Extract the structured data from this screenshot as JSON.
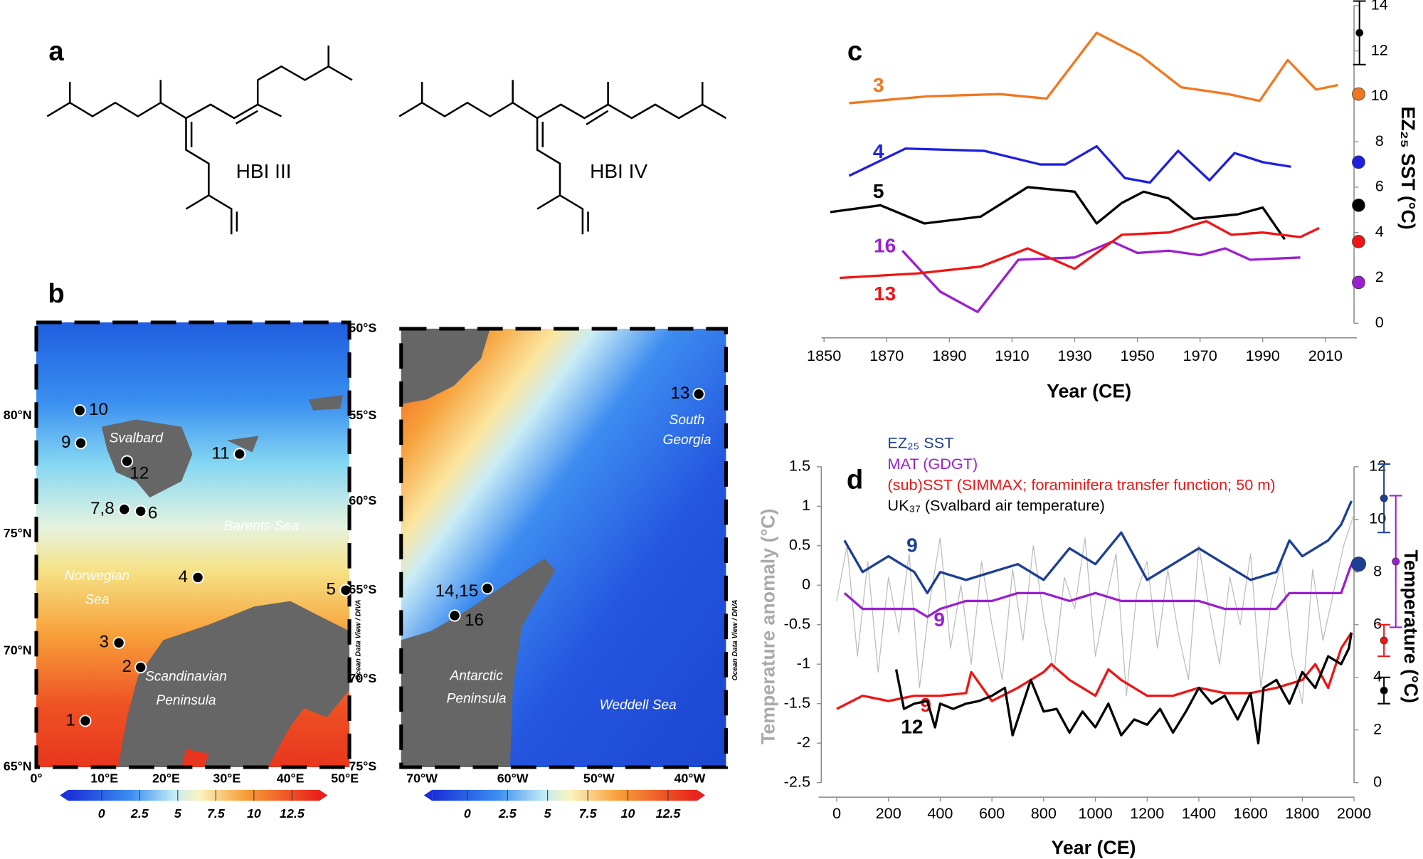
{
  "panel_labels": [
    "a",
    "b",
    "c",
    "d"
  ],
  "structures": [
    "HBI III",
    "HBI IV"
  ],
  "maps": [
    {
      "lat_ticks": [
        "80°N",
        "75°N",
        "70°N",
        "65°N"
      ],
      "lon_ticks": [
        "0°",
        "10°E",
        "20°E",
        "30°E",
        "40°E",
        "50°E"
      ],
      "places": [
        [
          "Svalbard"
        ],
        [
          "Barents Sea"
        ],
        [
          "Norwegian",
          "Sea"
        ],
        [
          "Scandinavian",
          "Peninsula"
        ]
      ],
      "stations": [
        "10",
        "9",
        "12",
        "11",
        "7,8",
        "6",
        "4",
        "5",
        "3",
        "2",
        "1"
      ],
      "credit": "Ocean Data View / DIVA",
      "colorbar": {
        "clim": [
          -2.2,
          14.3
        ],
        "ticks": [
          0,
          2.5,
          5,
          7.5,
          10,
          12.5
        ]
      }
    },
    {
      "lat_ticks": [
        "50°S",
        "55°S",
        "60°S",
        "65°S",
        "70°S",
        "75°S"
      ],
      "lon_ticks": [
        "70°W",
        "60°W",
        "50°W",
        "40°W"
      ],
      "places": [
        [
          "South",
          "Georgia"
        ],
        [
          "Antarctic",
          "Peninsula"
        ],
        [
          "Weddell Sea"
        ]
      ],
      "stations": [
        "13",
        "14,15",
        "16"
      ],
      "credit": "Ocean Data View / DIVA",
      "colorbar": {
        "clim": [
          -2.2,
          14.3
        ],
        "ticks": [
          0,
          2.5,
          5,
          7.5,
          10,
          12.5
        ]
      }
    }
  ],
  "chart_data": [
    {
      "type": "line",
      "xlabel": "Year (CE)",
      "ylabel": "EZ₂₅ SST (°C)",
      "yaxis_side": "right",
      "xlim": [
        1850,
        2020
      ],
      "xticks": [
        1850,
        1870,
        1890,
        1910,
        1930,
        1950,
        1970,
        1990,
        2010
      ],
      "ylim": [
        0,
        14
      ],
      "yticks": [
        0,
        2,
        4,
        6,
        8,
        10,
        12,
        14
      ],
      "series": [
        {
          "name": "3",
          "color": "#f07820",
          "x": [
            1858,
            1883,
            1906,
            1921,
            1937,
            1951,
            1964,
            1979,
            1989,
            1998,
            2007,
            2014
          ],
          "values": [
            9.7,
            10.0,
            10.1,
            9.9,
            12.8,
            11.8,
            10.4,
            10.1,
            9.8,
            11.6,
            10.3,
            10.5
          ]
        },
        {
          "name": "4",
          "color": "#1f1fe0",
          "x": [
            1858,
            1876,
            1901,
            1919,
            1927,
            1937,
            1946,
            1954,
            1963,
            1973,
            1981,
            1990,
            1999
          ],
          "values": [
            6.5,
            7.7,
            7.6,
            7.0,
            7.0,
            7.8,
            6.4,
            6.2,
            7.6,
            6.3,
            7.5,
            7.1,
            6.9
          ]
        },
        {
          "name": "5",
          "color": "#000000",
          "x": [
            1852,
            1868,
            1882,
            1900,
            1915,
            1930,
            1937,
            1945,
            1952,
            1960,
            1968,
            1982,
            1990,
            1997
          ],
          "values": [
            4.9,
            5.2,
            4.4,
            4.7,
            6.0,
            5.8,
            4.4,
            5.3,
            5.8,
            5.5,
            4.6,
            4.8,
            5.1,
            3.7
          ]
        },
        {
          "name": "16",
          "color": "#9b1fcf",
          "x": [
            1875,
            1887,
            1899,
            1912,
            1930,
            1942,
            1950,
            1960,
            1970,
            1978,
            1986,
            2002
          ],
          "values": [
            3.2,
            1.4,
            0.5,
            2.8,
            2.9,
            3.6,
            3.1,
            3.2,
            3.0,
            3.3,
            2.8,
            2.9
          ]
        },
        {
          "name": "13",
          "color": "#f01414",
          "x": [
            1855,
            1880,
            1900,
            1915,
            1930,
            1945,
            1960,
            1972,
            1980,
            1990,
            2002,
            2008
          ],
          "values": [
            2.0,
            2.2,
            2.5,
            3.3,
            2.4,
            3.9,
            4.0,
            4.5,
            3.9,
            4.0,
            3.8,
            4.2
          ]
        }
      ],
      "markers": [
        {
          "value": 12.8,
          "error": 1.4,
          "color": "#000000"
        },
        {
          "value": 10.1,
          "color": "#f07820"
        },
        {
          "value": 7.1,
          "color": "#1f1fe0"
        },
        {
          "value": 5.2,
          "color": "#000000"
        },
        {
          "value": 3.6,
          "color": "#f01414"
        },
        {
          "value": 1.8,
          "color": "#9b1fcf"
        }
      ]
    },
    {
      "type": "line",
      "xlabel": "Year (CE)",
      "ylabel": "Temperature anomaly (°C)",
      "y2label": "Temperature (°C)",
      "legend": "top-left",
      "xlim": [
        0,
        2000
      ],
      "xticks": [
        0,
        200,
        400,
        600,
        800,
        1000,
        1200,
        1400,
        1600,
        1800,
        2000
      ],
      "ylim": [
        -2.5,
        1.5
      ],
      "yticks": [
        -2.5,
        -2,
        -1.5,
        -1,
        -0.5,
        0,
        0.5,
        1,
        1.5
      ],
      "y2lim": [
        0,
        12
      ],
      "y2ticks": [
        0,
        2,
        4,
        6,
        8,
        10,
        12
      ],
      "series": [
        {
          "color": "#bdbdbd",
          "x": [
            0,
            40,
            80,
            120,
            160,
            200,
            240,
            280,
            320,
            360,
            400,
            440,
            480,
            520,
            560,
            600,
            640,
            680,
            720,
            760,
            800,
            840,
            880,
            920,
            960,
            1000,
            1040,
            1080,
            1120,
            1160,
            1200,
            1240,
            1280,
            1320,
            1360,
            1400,
            1440,
            1480,
            1520,
            1560,
            1600,
            1640,
            1680,
            1720,
            1760,
            1800,
            1840,
            1880,
            1920,
            1960,
            2000
          ],
          "values": [
            -0.2,
            0.5,
            -0.9,
            0.3,
            -1.1,
            0.1,
            -0.6,
            0.4,
            -1.3,
            -0.2,
            0.6,
            -0.8,
            0.0,
            -1.0,
            0.3,
            -0.5,
            -1.2,
            0.2,
            -0.7,
            0.5,
            -0.4,
            -1.1,
            0.1,
            -0.3,
            0.6,
            -0.9,
            -0.2,
            0.4,
            -1.4,
            -0.1,
            0.3,
            -0.8,
            0.2,
            -0.6,
            -1.2,
            0.5,
            -0.3,
            -1.0,
            0.1,
            -0.5,
            0.4,
            -1.3,
            -0.2,
            0.3,
            -0.9,
            -1.5,
            0.2,
            -0.7,
            -0.1,
            0.5,
            0.9
          ]
        },
        {
          "name": "EZ₂₅ SST",
          "label": "9",
          "color": "#1c3f94",
          "axis": "y2",
          "x": [
            30,
            100,
            200,
            300,
            350,
            400,
            500,
            600,
            700,
            800,
            900,
            1000,
            1100,
            1200,
            1300,
            1400,
            1500,
            1600,
            1700,
            1750,
            1800,
            1900,
            1950,
            1990
          ],
          "values": [
            9.2,
            8.0,
            8.6,
            8.0,
            7.2,
            8.0,
            7.7,
            8.0,
            8.3,
            7.7,
            8.9,
            8.3,
            9.5,
            7.7,
            8.3,
            8.9,
            8.3,
            7.7,
            8.0,
            9.2,
            8.6,
            9.2,
            9.8,
            10.7
          ]
        },
        {
          "name": "MAT (GDGT)",
          "label": "9",
          "color": "#9b1fcf",
          "axis": "y2",
          "x": [
            30,
            100,
            200,
            300,
            350,
            400,
            500,
            600,
            700,
            800,
            900,
            1000,
            1100,
            1200,
            1300,
            1400,
            1500,
            1600,
            1700,
            1750,
            1800,
            1900,
            1950,
            1990
          ],
          "values": [
            7.2,
            6.6,
            6.6,
            6.6,
            6.3,
            6.6,
            6.9,
            6.9,
            7.2,
            7.2,
            6.9,
            7.2,
            6.9,
            6.9,
            6.9,
            6.9,
            6.6,
            6.6,
            6.6,
            7.2,
            7.2,
            7.2,
            7.2,
            8.3
          ]
        },
        {
          "name": "(sub)SST (SIMMAX; foraminifera transfer function; 50 m)",
          "label": "9",
          "color": "#f01414",
          "axis": "y2",
          "x": [
            0,
            100,
            200,
            300,
            400,
            500,
            520,
            600,
            700,
            800,
            830,
            900,
            1000,
            1050,
            1100,
            1200,
            1300,
            1400,
            1500,
            1600,
            1700,
            1800,
            1850,
            1900,
            1950,
            1990
          ],
          "values": [
            2.8,
            3.3,
            3.1,
            3.3,
            3.3,
            3.4,
            4.2,
            3.1,
            3.6,
            4.2,
            4.5,
            3.9,
            3.3,
            4.3,
            3.9,
            3.3,
            3.3,
            3.6,
            3.4,
            3.4,
            3.6,
            3.9,
            4.5,
            3.6,
            5.1,
            5.7
          ]
        },
        {
          "name": "UK₃₇ (Svalbard air temperature)",
          "label": "12",
          "color": "#000000",
          "axis": "y2",
          "x": [
            230,
            260,
            300,
            350,
            380,
            400,
            450,
            500,
            550,
            600,
            650,
            680,
            720,
            750,
            800,
            850,
            900,
            950,
            1000,
            1050,
            1100,
            1150,
            1200,
            1250,
            1300,
            1350,
            1400,
            1450,
            1500,
            1550,
            1600,
            1630,
            1650,
            1700,
            1750,
            1800,
            1850,
            1900,
            1950,
            1980,
            1990
          ],
          "values": [
            4.3,
            2.8,
            3.0,
            3.1,
            2.1,
            3.0,
            2.8,
            3.0,
            3.1,
            3.3,
            3.6,
            1.8,
            3.0,
            3.9,
            2.7,
            2.8,
            1.9,
            2.7,
            2.1,
            3.0,
            1.8,
            2.4,
            2.2,
            2.8,
            1.9,
            2.7,
            3.6,
            3.0,
            3.3,
            2.4,
            3.4,
            1.5,
            3.6,
            3.9,
            3.0,
            4.2,
            3.6,
            4.8,
            4.5,
            5.1,
            5.7
          ]
        }
      ],
      "markers": [
        {
          "value": 10.8,
          "error": 1.3,
          "color": "#1c3f94"
        },
        {
          "value": 8.3,
          "color": "#1c3f94"
        },
        {
          "value": 8.4,
          "error": 2.5,
          "color": "#9b1fcf"
        },
        {
          "value": 5.4,
          "error": 0.6,
          "color": "#f01414"
        },
        {
          "value": 3.5,
          "error": 0.5,
          "color": "#000000"
        }
      ]
    }
  ]
}
